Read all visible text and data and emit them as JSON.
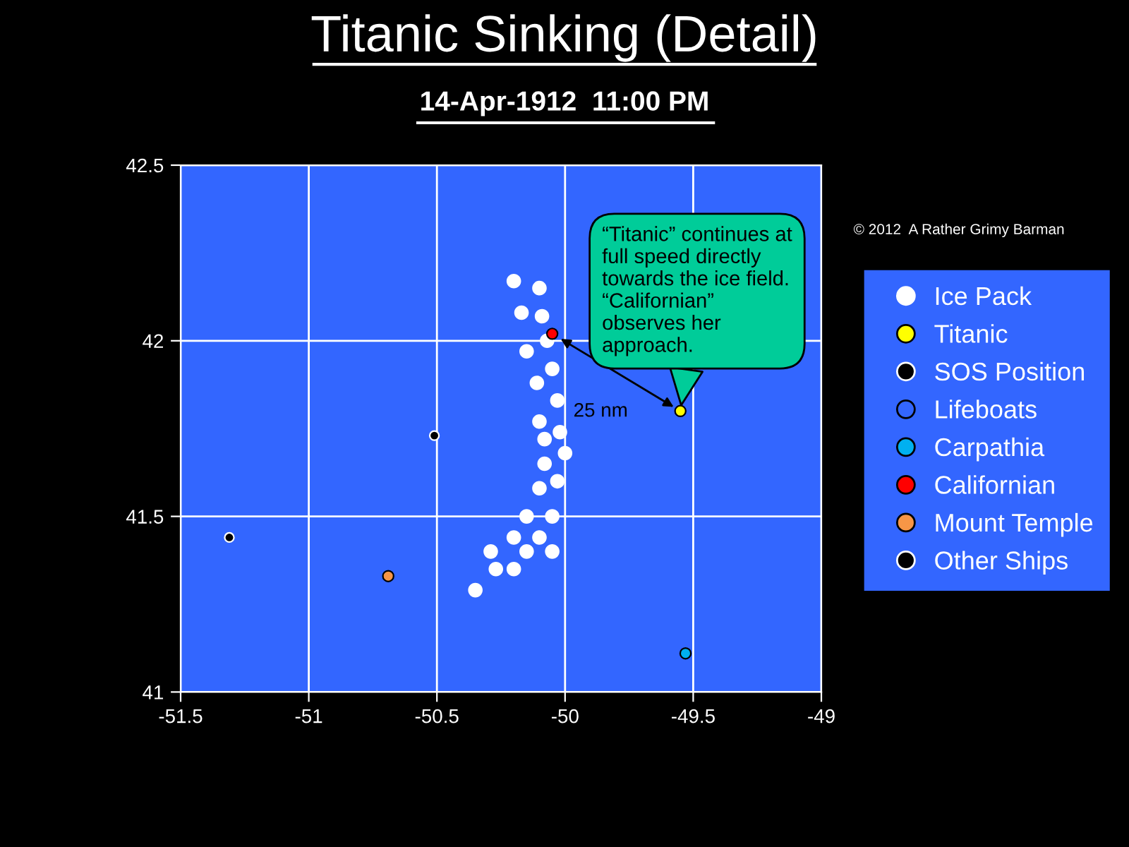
{
  "chart_data": {
    "type": "scatter",
    "title": "Titanic Sinking (Detail)",
    "subtitle": "14-Apr-1912  11:00 PM",
    "xlim": [
      -51.5,
      -49
    ],
    "ylim": [
      41,
      42.5
    ],
    "xticks": [
      -51.5,
      -51,
      -50.5,
      -50,
      -49.5,
      -49
    ],
    "yticks": [
      41,
      41.5,
      42,
      42.5
    ],
    "grid": true,
    "legend": "right",
    "marker": "circle",
    "series": [
      {
        "name": "Ice Pack",
        "color": "#ffffff",
        "x": [
          -50.2,
          -50.1,
          -50.17,
          -50.09,
          -50.07,
          -50.15,
          -50.05,
          -50.11,
          -50.03,
          -50.1,
          -50.02,
          -50.08,
          -50.0,
          -50.08,
          -50.03,
          -50.1,
          -50.15,
          -50.05,
          -50.2,
          -50.1,
          -50.29,
          -50.15,
          -50.05,
          -50.27,
          -50.2,
          -50.35
        ],
        "values": [
          42.17,
          42.15,
          42.08,
          42.07,
          42.0,
          41.97,
          41.92,
          41.88,
          41.83,
          41.77,
          41.74,
          41.72,
          41.68,
          41.65,
          41.6,
          41.58,
          41.5,
          41.5,
          41.44,
          41.44,
          41.4,
          41.4,
          41.4,
          41.35,
          41.35,
          41.29
        ]
      },
      {
        "name": "Titanic",
        "color": "#ffff00",
        "x": [
          -49.55
        ],
        "values": [
          41.8
        ]
      },
      {
        "name": "SOS Position",
        "color": "#000000"
      },
      {
        "name": "Lifeboats",
        "color": "#3366ff"
      },
      {
        "name": "Carpathia",
        "color": "#00b0f0",
        "x": [
          -49.53
        ],
        "values": [
          41.11
        ]
      },
      {
        "name": "Californian",
        "color": "#ff0000",
        "x": [
          -50.05
        ],
        "values": [
          42.02
        ]
      },
      {
        "name": "Mount Temple",
        "color": "#f79646",
        "x": [
          -50.69
        ],
        "values": [
          41.33
        ]
      },
      {
        "name": "Other Ships",
        "color": "#000000",
        "x": [
          -50.51,
          -51.31
        ],
        "values": [
          41.73,
          41.44
        ]
      }
    ],
    "annotations": [
      "25 nm",
      {
        "text": "“Titanic” continues at\nfull speed directly\ntowards the ice field.\n“Californian”\nobserves her\napproach.",
        "x": -49.55,
        "y": 41.8
      },
      "© 2012  A Rather Grimy Barman"
    ]
  }
}
